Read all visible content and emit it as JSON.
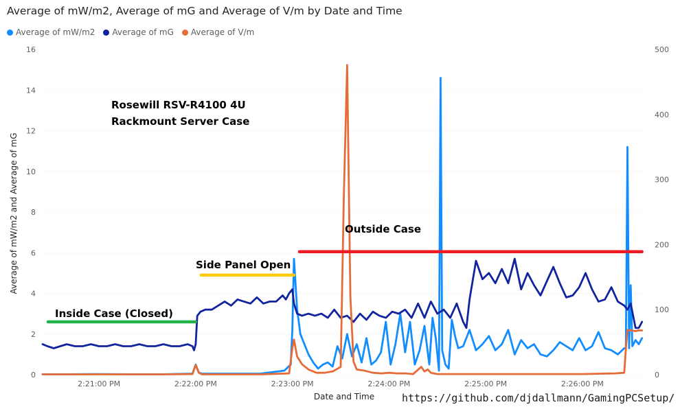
{
  "title": "Average of mW/m2, Average of mG and Average of V/m by Date and Time",
  "legend": [
    {
      "label": "Average of mW/m2",
      "color": "#118dff"
    },
    {
      "label": "Average of mG",
      "color": "#12239e"
    },
    {
      "label": "Average of V/m",
      "color": "#e66c37"
    }
  ],
  "watermark": "https://github.com/djdallmann/GamingPCSetup/",
  "chart_data": {
    "type": "line",
    "xlabel": "Date and Time",
    "ylabel": "Average of mW/m2 and Average of mG",
    "x_ticks": [
      "2:21:00 PM",
      "2:22:00 PM",
      "2:23:00 PM",
      "2:24:00 PM",
      "2:25:00 PM",
      "2:26:00 PM"
    ],
    "x_tick_seconds": [
      60,
      120,
      180,
      240,
      300,
      360
    ],
    "xlim_seconds": [
      25,
      398
    ],
    "y_left": {
      "ticks": [
        0,
        2,
        4,
        6,
        8,
        10,
        12,
        14,
        16
      ],
      "ylim": [
        0,
        16
      ]
    },
    "y_right": {
      "ticks": [
        0,
        100,
        200,
        300,
        400,
        500
      ],
      "ylim": [
        0,
        500
      ]
    },
    "grid": true,
    "legend_position": "top-left",
    "annotations": [
      {
        "text": "Rosewill RSV-R4100 4U",
        "color": "#000000"
      },
      {
        "text": "Rackmount Server Case",
        "color": "#000000"
      },
      {
        "text": "Inside Case (Closed)",
        "color": "#000000",
        "line_color": "#22b14c",
        "x_range": [
          25,
          120
        ],
        "y": 2.6
      },
      {
        "text": "Side Panel Open",
        "color": "#000000",
        "line_color": "#ffc90e",
        "x_range": [
          120,
          181
        ],
        "y": 4.9
      },
      {
        "text": "Outside Case",
        "color": "#000000",
        "line_color": "#ed1c24",
        "x_range": [
          181,
          397
        ],
        "y": 6.05
      }
    ],
    "series": [
      {
        "name": "Average of mW/m2",
        "axis": "left",
        "color": "#118dff",
        "x": [
          25,
          40,
          60,
          80,
          100,
          118,
          120,
          122,
          124,
          140,
          160,
          175,
          179,
          180,
          181,
          183,
          185,
          187,
          190,
          193,
          196,
          199,
          202,
          205,
          208,
          211,
          214,
          217,
          220,
          223,
          226,
          229,
          232,
          235,
          238,
          241,
          244,
          247,
          250,
          253,
          256,
          259,
          262,
          265,
          267,
          269,
          271,
          272,
          273,
          275,
          277,
          279,
          281,
          283,
          286,
          290,
          294,
          298,
          302,
          306,
          310,
          314,
          318,
          322,
          326,
          330,
          334,
          338,
          342,
          346,
          350,
          354,
          358,
          362,
          366,
          370,
          374,
          378,
          382,
          386,
          387,
          388,
          389,
          390,
          391,
          393,
          395,
          397
        ],
        "values": [
          0.02,
          0.02,
          0.03,
          0.02,
          0.02,
          0.05,
          0.5,
          0.1,
          0.05,
          0.05,
          0.05,
          0.2,
          0.5,
          2.2,
          5.7,
          3.2,
          2.0,
          1.6,
          1.0,
          0.6,
          0.3,
          0.5,
          0.6,
          0.4,
          1.4,
          0.8,
          2.0,
          0.9,
          1.5,
          0.6,
          1.8,
          0.5,
          0.7,
          1.1,
          2.6,
          0.5,
          1.5,
          3.0,
          1.1,
          2.6,
          0.5,
          1.2,
          2.4,
          0.5,
          2.8,
          1.8,
          0.2,
          14.6,
          1.2,
          0.5,
          0.3,
          2.7,
          1.9,
          1.3,
          1.4,
          2.2,
          1.2,
          1.5,
          1.9,
          1.2,
          1.5,
          2.2,
          1.0,
          1.7,
          1.3,
          1.5,
          1.0,
          0.9,
          1.2,
          1.6,
          1.4,
          1.2,
          1.8,
          1.2,
          1.4,
          2.1,
          1.3,
          1.2,
          1.0,
          1.3,
          1.3,
          11.2,
          1.3,
          4.4,
          1.4,
          1.7,
          1.5,
          1.8
        ]
      },
      {
        "name": "Average of mG",
        "axis": "left",
        "color": "#12239e",
        "x": [
          25,
          28,
          32,
          36,
          40,
          45,
          50,
          55,
          60,
          65,
          70,
          75,
          80,
          85,
          90,
          95,
          100,
          105,
          110,
          115,
          118,
          119,
          120,
          121,
          123,
          126,
          130,
          134,
          138,
          142,
          146,
          150,
          154,
          158,
          162,
          166,
          170,
          174,
          176,
          178,
          179,
          180,
          181,
          183,
          186,
          190,
          194,
          198,
          202,
          206,
          210,
          214,
          218,
          222,
          226,
          230,
          234,
          238,
          242,
          246,
          250,
          254,
          258,
          262,
          266,
          270,
          274,
          278,
          282,
          286,
          288,
          290,
          294,
          298,
          302,
          306,
          310,
          314,
          318,
          322,
          326,
          330,
          334,
          338,
          342,
          346,
          350,
          354,
          358,
          362,
          366,
          370,
          374,
          378,
          382,
          386,
          388,
          390,
          393,
          395,
          397
        ],
        "values": [
          1.5,
          1.4,
          1.3,
          1.4,
          1.5,
          1.4,
          1.4,
          1.5,
          1.4,
          1.4,
          1.5,
          1.4,
          1.4,
          1.5,
          1.4,
          1.4,
          1.5,
          1.4,
          1.4,
          1.5,
          1.4,
          1.2,
          1.5,
          2.9,
          3.1,
          3.2,
          3.2,
          3.4,
          3.6,
          3.4,
          3.7,
          3.6,
          3.5,
          3.8,
          3.5,
          3.6,
          3.6,
          3.9,
          3.7,
          4.0,
          4.1,
          4.2,
          3.5,
          3.0,
          2.9,
          3.0,
          2.9,
          3.0,
          2.8,
          3.2,
          2.8,
          2.9,
          2.6,
          3.0,
          2.7,
          3.1,
          2.9,
          2.8,
          3.1,
          3.0,
          3.2,
          2.8,
          3.5,
          2.8,
          3.6,
          3.0,
          3.2,
          2.8,
          3.5,
          2.6,
          2.3,
          3.7,
          5.6,
          4.7,
          5.0,
          4.5,
          5.2,
          4.5,
          5.7,
          4.2,
          5.0,
          4.4,
          3.9,
          4.6,
          5.3,
          4.5,
          3.8,
          3.9,
          4.3,
          5.0,
          4.2,
          3.6,
          3.7,
          4.3,
          3.6,
          3.4,
          3.2,
          3.5,
          2.3,
          2.3,
          2.6
        ]
      },
      {
        "name": "Average of V/m",
        "axis": "right",
        "color": "#e66c37",
        "x": [
          25,
          60,
          100,
          118,
          120,
          122,
          124,
          140,
          160,
          178,
          180,
          181,
          183,
          186,
          190,
          195,
          200,
          205,
          210,
          212,
          214,
          216,
          218,
          220,
          225,
          230,
          235,
          240,
          245,
          250,
          255,
          260,
          262,
          264,
          266,
          270,
          280,
          300,
          320,
          340,
          360,
          380,
          386,
          387,
          388,
          390,
          393,
          395,
          397
        ],
        "values": [
          0.5,
          0.5,
          0.5,
          1,
          15,
          3,
          0.5,
          0.5,
          0.5,
          2,
          40,
          54,
          28,
          16,
          8,
          3,
          3,
          5,
          12,
          280,
          476,
          120,
          20,
          8,
          6,
          3,
          2,
          3,
          2,
          2,
          1,
          12,
          5,
          8,
          3,
          1,
          1,
          1,
          1,
          1,
          1,
          2,
          3,
          40,
          69,
          68,
          67,
          68,
          68
        ]
      }
    ]
  }
}
